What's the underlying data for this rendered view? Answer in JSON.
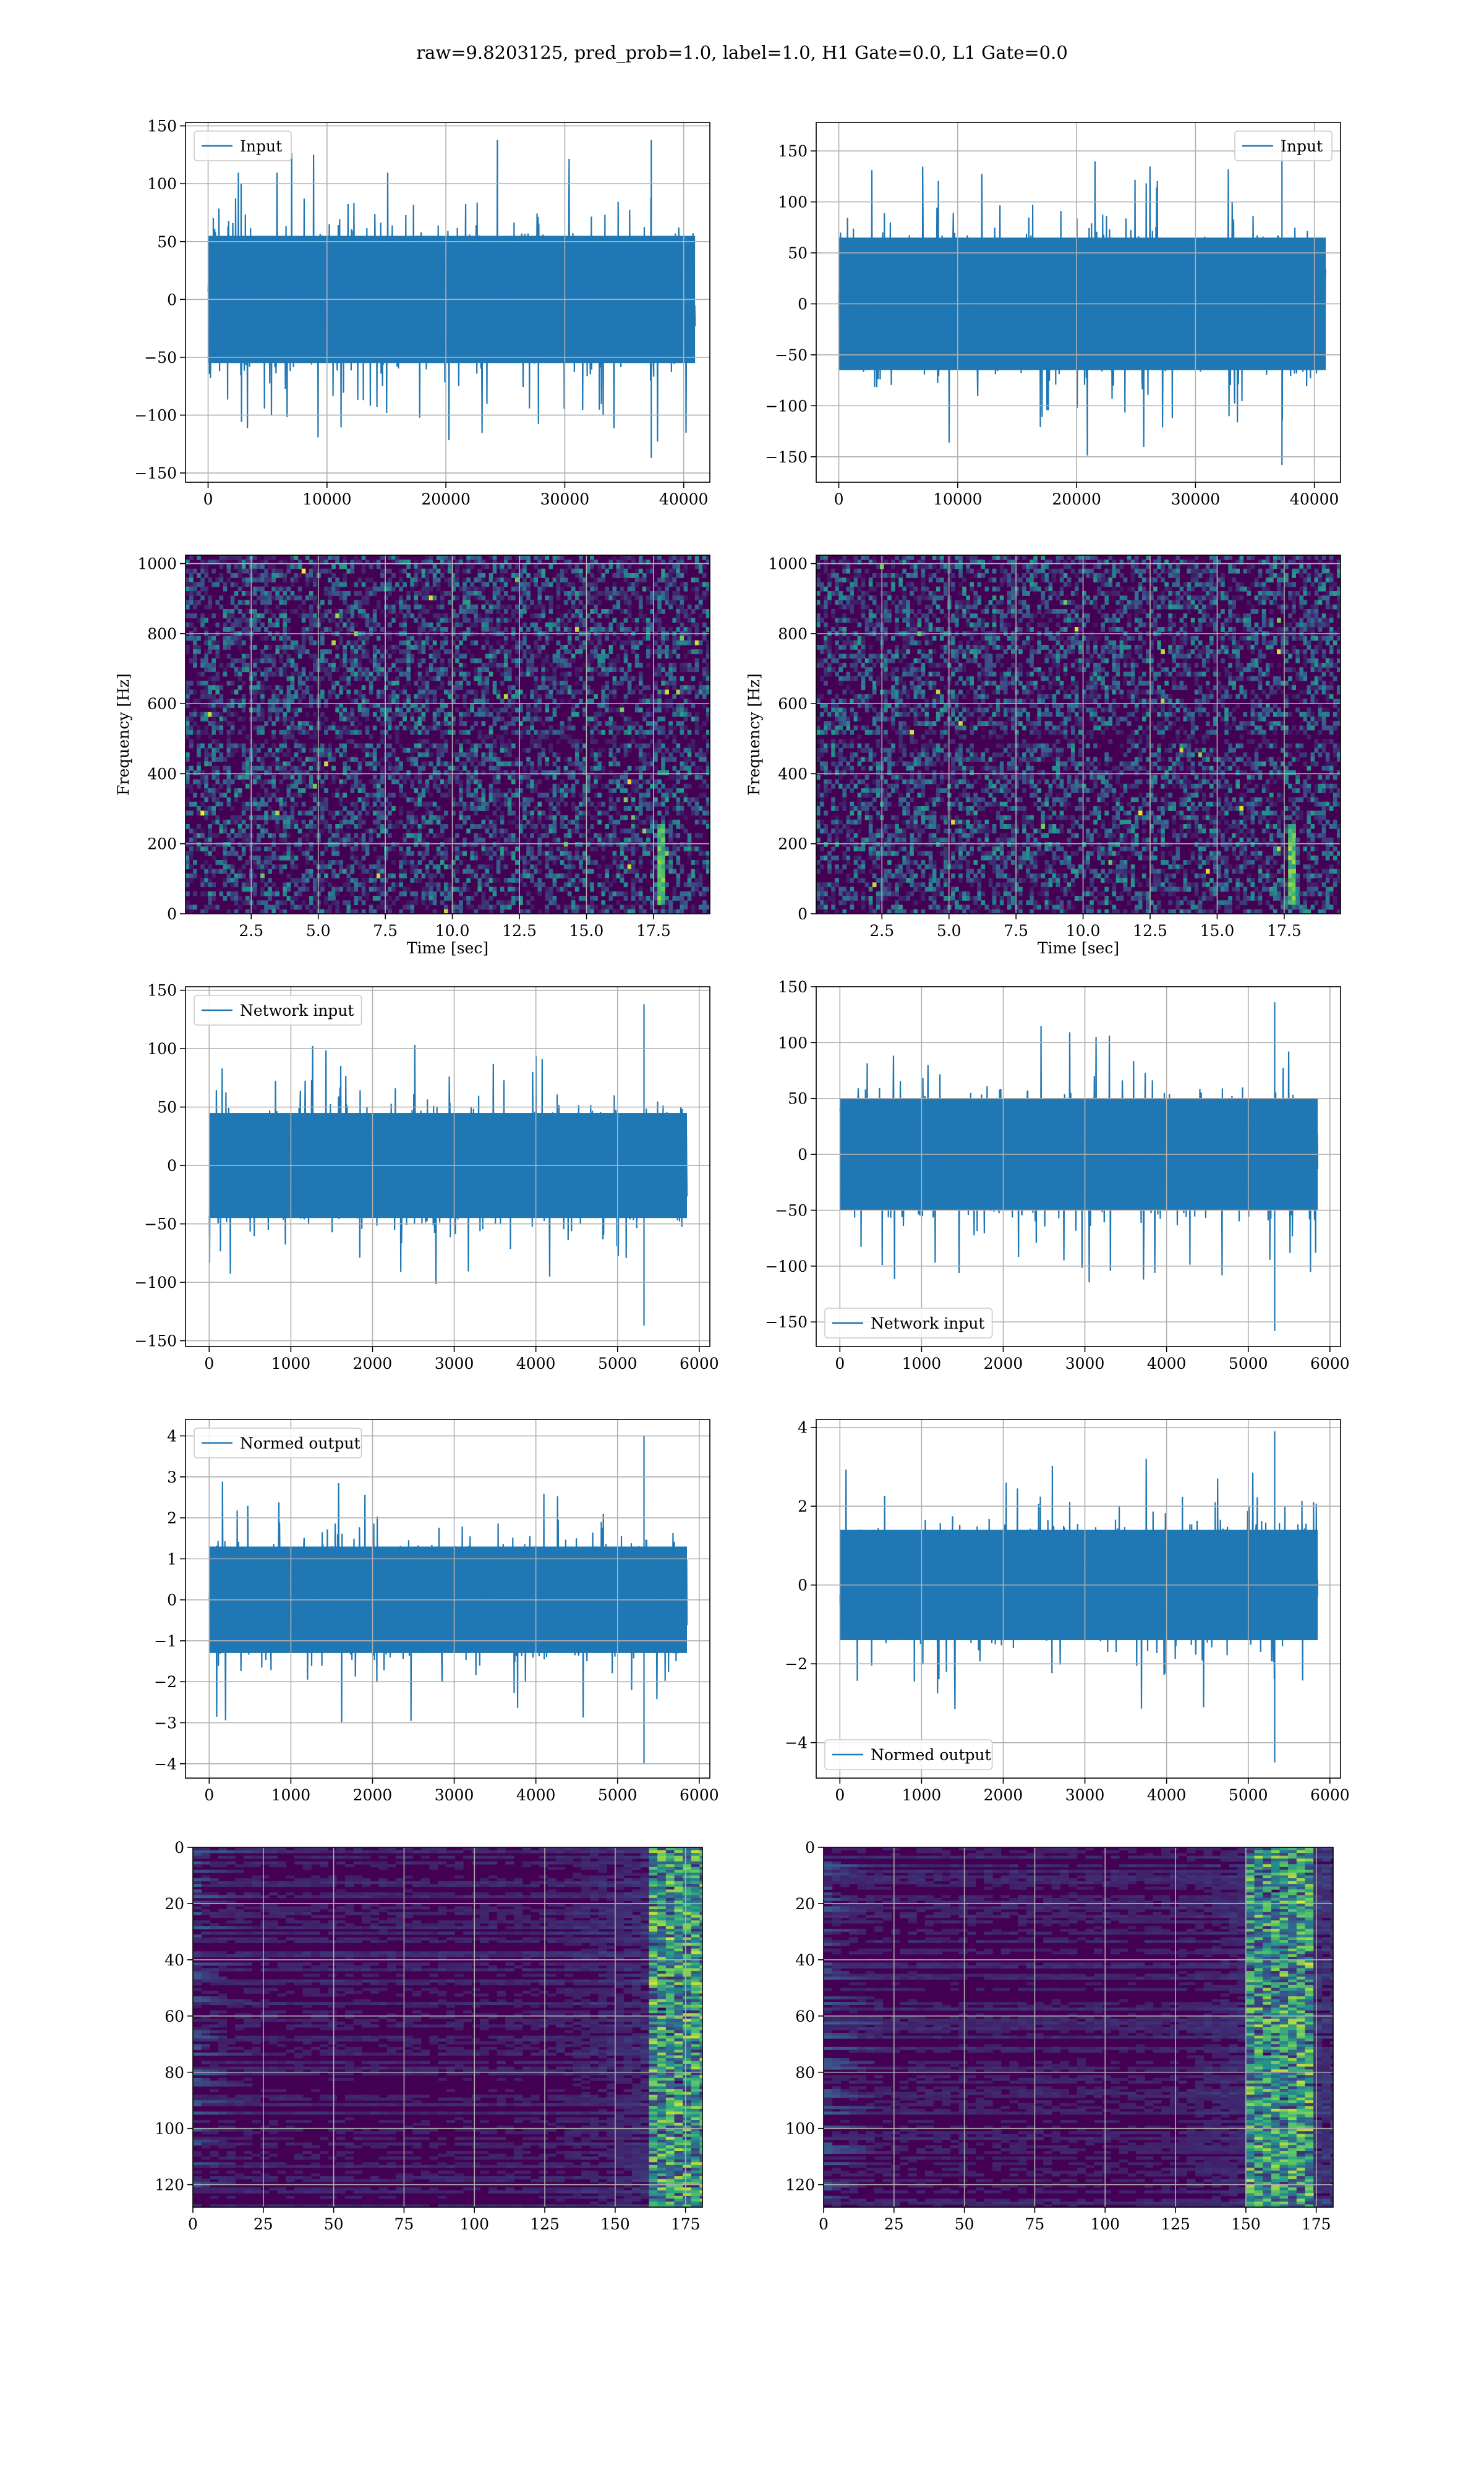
{
  "suptitle": "raw=9.8203125, pred_prob=1.0, label=1.0, H1 Gate=0.0, L1 Gate=0.0",
  "colors": {
    "line": "#1f77b4",
    "grid": "#b0b0b0",
    "viridis": [
      "#440154",
      "#3b528b",
      "#21908d",
      "#5dc963",
      "#fde725"
    ]
  },
  "chart_data": [
    {
      "id": "r1c1",
      "type": "line",
      "legend": "Input",
      "legend_loc": "upper left",
      "xlim": [
        -1900,
        42200
      ],
      "ylim": [
        -158,
        153
      ],
      "xticks": [
        0,
        10000,
        20000,
        30000,
        40000
      ],
      "xticklabels": [
        "0",
        "10000",
        "20000",
        "30000",
        "40000"
      ],
      "yticks": [
        -150,
        -100,
        -50,
        0,
        50,
        100,
        150
      ],
      "yticklabels": [
        "−150",
        "−100",
        "−50",
        "0",
        "50",
        "100",
        "150"
      ],
      "xlabel": "",
      "ylabel": "",
      "grid": true,
      "signal": {
        "x_start": 0,
        "x_end": 40960,
        "band": 55,
        "peak_max": 138,
        "peak_min": -137
      }
    },
    {
      "id": "r1c2",
      "type": "line",
      "legend": "Input",
      "legend_loc": "upper right",
      "xlim": [
        -1900,
        42200
      ],
      "ylim": [
        -175,
        178
      ],
      "xticks": [
        0,
        10000,
        20000,
        30000,
        40000
      ],
      "xticklabels": [
        "0",
        "10000",
        "20000",
        "30000",
        "40000"
      ],
      "yticks": [
        -150,
        -100,
        -50,
        0,
        50,
        100,
        150
      ],
      "yticklabels": [
        "−150",
        "−100",
        "−50",
        "0",
        "50",
        "100",
        "150"
      ],
      "xlabel": "",
      "ylabel": "",
      "grid": true,
      "signal": {
        "x_start": 0,
        "x_end": 40960,
        "band": 65,
        "peak_max": 163,
        "peak_min": -158
      }
    },
    {
      "id": "r2c1",
      "type": "heatmap",
      "cmap": "viridis",
      "xlim": [
        0.05,
        19.6
      ],
      "ylim": [
        0,
        1024
      ],
      "xticks": [
        2.5,
        5,
        7.5,
        10,
        12.5,
        15,
        17.5
      ],
      "xticklabels": [
        "2.5",
        "5.0",
        "7.5",
        "10.0",
        "12.5",
        "15.0",
        "17.5"
      ],
      "yticks": [
        0,
        200,
        400,
        600,
        800,
        1000
      ],
      "yticklabels": [
        "0",
        "200",
        "400",
        "600",
        "800",
        "1000"
      ],
      "xlabel": "Time [sec]",
      "ylabel": "Frequency [Hz]",
      "grid": true,
      "features": {
        "chirp_time": 17.8,
        "chirp_freq": [
          20,
          250
        ]
      }
    },
    {
      "id": "r2c2",
      "type": "heatmap",
      "cmap": "viridis",
      "xlim": [
        0.05,
        19.6
      ],
      "ylim": [
        0,
        1024
      ],
      "xticks": [
        2.5,
        5,
        7.5,
        10,
        12.5,
        15,
        17.5
      ],
      "xticklabels": [
        "2.5",
        "5.0",
        "7.5",
        "10.0",
        "12.5",
        "15.0",
        "17.5"
      ],
      "yticks": [
        0,
        200,
        400,
        600,
        800,
        1000
      ],
      "yticklabels": [
        "0",
        "200",
        "400",
        "600",
        "800",
        "1000"
      ],
      "xlabel": "Time [sec]",
      "ylabel": "Frequency [Hz]",
      "grid": true,
      "features": {
        "chirp_time": 17.8,
        "chirp_freq": [
          20,
          250
        ]
      }
    },
    {
      "id": "r3c1",
      "type": "line",
      "legend": "Network input",
      "legend_loc": "upper left",
      "xlim": [
        -290,
        6130
      ],
      "ylim": [
        -155,
        153
      ],
      "xticks": [
        0,
        1000,
        2000,
        3000,
        4000,
        5000,
        6000
      ],
      "xticklabels": [
        "0",
        "1000",
        "2000",
        "3000",
        "4000",
        "5000",
        "6000"
      ],
      "yticks": [
        -150,
        -100,
        -50,
        0,
        50,
        100,
        150
      ],
      "yticklabels": [
        "−150",
        "−100",
        "−50",
        "0",
        "50",
        "100",
        "150"
      ],
      "xlabel": "",
      "ylabel": "",
      "grid": true,
      "signal": {
        "x_start": 0,
        "x_end": 5850,
        "band": 45,
        "peak_max": 138,
        "peak_min": -137
      }
    },
    {
      "id": "r3c2",
      "type": "line",
      "legend": "Network input",
      "legend_loc": "lower left",
      "xlim": [
        -290,
        6130
      ],
      "ylim": [
        -172,
        150
      ],
      "xticks": [
        0,
        1000,
        2000,
        3000,
        4000,
        5000,
        6000
      ],
      "xticklabels": [
        "0",
        "1000",
        "2000",
        "3000",
        "4000",
        "5000",
        "6000"
      ],
      "yticks": [
        -150,
        -100,
        -50,
        0,
        50,
        100,
        150
      ],
      "yticklabels": [
        "−150",
        "−100",
        "−50",
        "0",
        "50",
        "100",
        "150"
      ],
      "xlabel": "",
      "ylabel": "",
      "grid": true,
      "signal": {
        "x_start": 0,
        "x_end": 5850,
        "band": 50,
        "peak_max": 136,
        "peak_min": -158
      }
    },
    {
      "id": "r4c1",
      "type": "line",
      "legend": "Normed output",
      "legend_loc": "upper left",
      "xlim": [
        -290,
        6130
      ],
      "ylim": [
        -4.35,
        4.4
      ],
      "xticks": [
        0,
        1000,
        2000,
        3000,
        4000,
        5000,
        6000
      ],
      "xticklabels": [
        "0",
        "1000",
        "2000",
        "3000",
        "4000",
        "5000",
        "6000"
      ],
      "yticks": [
        -4,
        -3,
        -2,
        -1,
        0,
        1,
        2,
        3,
        4
      ],
      "yticklabels": [
        "−4",
        "−3",
        "−2",
        "−1",
        "0",
        "1",
        "2",
        "3",
        "4"
      ],
      "xlabel": "",
      "ylabel": "",
      "grid": true,
      "signal": {
        "x_start": 0,
        "x_end": 5850,
        "band": 1.3,
        "peak_max": 4.0,
        "peak_min": -4.0
      }
    },
    {
      "id": "r4c2",
      "type": "line",
      "legend": "Normed output",
      "legend_loc": "lower left",
      "xlim": [
        -290,
        6130
      ],
      "ylim": [
        -4.9,
        4.2
      ],
      "xticks": [
        0,
        1000,
        2000,
        3000,
        4000,
        5000,
        6000
      ],
      "xticklabels": [
        "0",
        "1000",
        "2000",
        "3000",
        "4000",
        "5000",
        "6000"
      ],
      "yticks": [
        -4,
        -2,
        0,
        2,
        4
      ],
      "yticklabels": [
        "−4",
        "−2",
        "0",
        "2",
        "4"
      ],
      "xlabel": "",
      "ylabel": "",
      "grid": true,
      "signal": {
        "x_start": 0,
        "x_end": 5850,
        "band": 1.4,
        "peak_max": 3.9,
        "peak_min": -4.5
      }
    },
    {
      "id": "r5c1",
      "type": "heatmap",
      "cmap": "viridis",
      "xlim": [
        0,
        181
      ],
      "ylim": [
        128,
        0
      ],
      "xticks": [
        0,
        25,
        50,
        75,
        100,
        125,
        150,
        175
      ],
      "xticklabels": [
        "0",
        "25",
        "50",
        "75",
        "100",
        "125",
        "150",
        "175"
      ],
      "yticks": [
        0,
        20,
        40,
        60,
        80,
        100,
        120
      ],
      "yticklabels": [
        "0",
        "20",
        "40",
        "60",
        "80",
        "100",
        "120"
      ],
      "xlabel": "",
      "ylabel": "",
      "grid": true,
      "features": {
        "bright_columns": [
          160,
          181
        ]
      }
    },
    {
      "id": "r5c2",
      "type": "heatmap",
      "cmap": "viridis",
      "xlim": [
        0,
        181
      ],
      "ylim": [
        128,
        0
      ],
      "xticks": [
        0,
        25,
        50,
        75,
        100,
        125,
        150,
        175
      ],
      "xticklabels": [
        "0",
        "25",
        "50",
        "75",
        "100",
        "125",
        "150",
        "175"
      ],
      "yticks": [
        0,
        20,
        40,
        60,
        80,
        100,
        120
      ],
      "yticklabels": [
        "0",
        "20",
        "40",
        "60",
        "80",
        "100",
        "120"
      ],
      "xlabel": "",
      "ylabel": "",
      "grid": true,
      "features": {
        "bright_columns": [
          150,
          172
        ]
      }
    }
  ]
}
